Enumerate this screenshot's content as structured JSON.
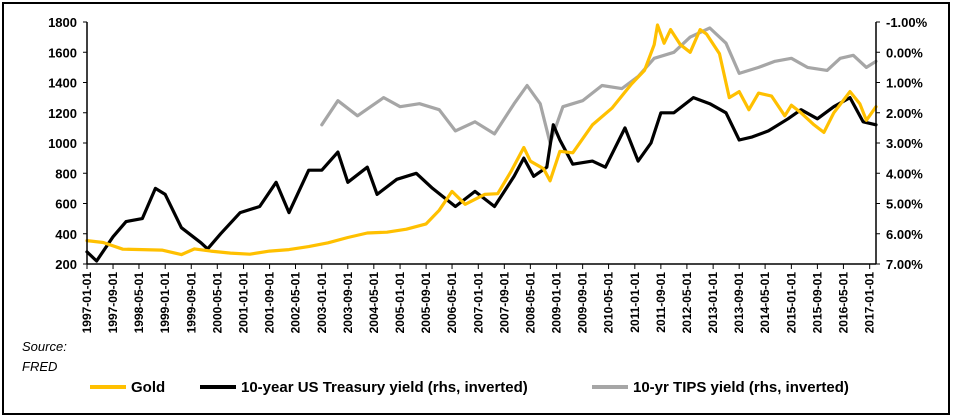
{
  "chart_data": {
    "type": "line",
    "title": "",
    "source_note": [
      "Source:",
      "FRED"
    ],
    "left_axis": {
      "ylim": [
        200,
        1800
      ],
      "ticks": [
        "1800",
        "1600",
        "1400",
        "1200",
        "1000",
        "800",
        "600",
        "400",
        "200"
      ]
    },
    "right_axis": {
      "ylim": [
        -1.0,
        7.0
      ],
      "inverted": true,
      "ticks": [
        "-1.00%",
        "0.00%",
        "1.00%",
        "2.00%",
        "3.00%",
        "4.00%",
        "5.00%",
        "6.00%",
        "7.00%"
      ]
    },
    "x_axis": {
      "range": [
        "1997-01-01",
        "2017-03-01"
      ],
      "ticks": [
        "1997-01-01",
        "1997-09-01",
        "1998-05-01",
        "1999-01-01",
        "1999-09-01",
        "2000-05-01",
        "2001-01-01",
        "2001-09-01",
        "2002-05-01",
        "2003-01-01",
        "2003-09-01",
        "2004-05-01",
        "2005-01-01",
        "2005-09-01",
        "2006-05-01",
        "2007-01-01",
        "2007-09-01",
        "2008-05-01",
        "2009-01-01",
        "2009-09-01",
        "2010-05-01",
        "2011-01-01",
        "2011-09-01",
        "2012-05-01",
        "2013-01-01",
        "2013-09-01",
        "2014-05-01",
        "2015-01-01",
        "2015-09-01",
        "2016-05-01",
        "2017-01-01"
      ]
    },
    "grid": false,
    "legend_position": "bottom",
    "series": [
      {
        "name": "Gold",
        "axis": "left",
        "color": "#FFC000",
        "points": [
          [
            "1997-01-01",
            355
          ],
          [
            "1997-06-01",
            342
          ],
          [
            "1997-12-01",
            298
          ],
          [
            "1998-06-01",
            295
          ],
          [
            "1998-12-01",
            292
          ],
          [
            "1999-06-01",
            262
          ],
          [
            "1999-10-01",
            300
          ],
          [
            "2000-03-01",
            285
          ],
          [
            "2000-09-01",
            272
          ],
          [
            "2001-03-01",
            265
          ],
          [
            "2001-09-01",
            285
          ],
          [
            "2002-03-01",
            295
          ],
          [
            "2002-09-01",
            315
          ],
          [
            "2003-03-01",
            340
          ],
          [
            "2003-09-01",
            375
          ],
          [
            "2004-03-01",
            405
          ],
          [
            "2004-09-01",
            410
          ],
          [
            "2005-03-01",
            430
          ],
          [
            "2005-09-01",
            465
          ],
          [
            "2006-01-01",
            555
          ],
          [
            "2006-05-01",
            680
          ],
          [
            "2006-09-01",
            595
          ],
          [
            "2007-03-01",
            660
          ],
          [
            "2007-07-01",
            665
          ],
          [
            "2007-11-01",
            810
          ],
          [
            "2008-03-01",
            970
          ],
          [
            "2008-05-01",
            880
          ],
          [
            "2008-09-01",
            830
          ],
          [
            "2008-11-01",
            750
          ],
          [
            "2009-02-01",
            945
          ],
          [
            "2009-06-01",
            935
          ],
          [
            "2009-12-01",
            1120
          ],
          [
            "2010-06-01",
            1230
          ],
          [
            "2010-12-01",
            1390
          ],
          [
            "2011-04-01",
            1480
          ],
          [
            "2011-07-01",
            1650
          ],
          [
            "2011-08-01",
            1780
          ],
          [
            "2011-10-01",
            1660
          ],
          [
            "2011-12-01",
            1750
          ],
          [
            "2012-03-01",
            1650
          ],
          [
            "2012-06-01",
            1600
          ],
          [
            "2012-09-01",
            1750
          ],
          [
            "2012-11-01",
            1720
          ],
          [
            "2013-03-01",
            1590
          ],
          [
            "2013-06-01",
            1300
          ],
          [
            "2013-09-01",
            1340
          ],
          [
            "2013-12-01",
            1220
          ],
          [
            "2014-03-01",
            1330
          ],
          [
            "2014-07-01",
            1310
          ],
          [
            "2014-11-01",
            1180
          ],
          [
            "2015-01-01",
            1250
          ],
          [
            "2015-04-01",
            1200
          ],
          [
            "2015-08-01",
            1120
          ],
          [
            "2015-11-01",
            1070
          ],
          [
            "2016-02-01",
            1200
          ],
          [
            "2016-07-01",
            1340
          ],
          [
            "2016-10-01",
            1260
          ],
          [
            "2016-12-01",
            1150
          ],
          [
            "2017-03-01",
            1240
          ]
        ]
      },
      {
        "name": "10-year US Treasury yield (rhs, inverted)",
        "axis": "right",
        "color": "#000000",
        "points": [
          [
            "1997-01-01",
            6.6
          ],
          [
            "1997-04-01",
            6.9
          ],
          [
            "1997-09-01",
            6.1
          ],
          [
            "1998-01-01",
            5.6
          ],
          [
            "1998-06-01",
            5.5
          ],
          [
            "1998-10-01",
            4.5
          ],
          [
            "1999-01-01",
            4.7
          ],
          [
            "1999-06-01",
            5.8
          ],
          [
            "1999-12-01",
            6.3
          ],
          [
            "2000-02-01",
            6.5
          ],
          [
            "2000-06-01",
            6.0
          ],
          [
            "2000-12-01",
            5.3
          ],
          [
            "2001-06-01",
            5.1
          ],
          [
            "2001-11-01",
            4.3
          ],
          [
            "2002-03-01",
            5.3
          ],
          [
            "2002-09-01",
            3.9
          ],
          [
            "2003-01-01",
            3.9
          ],
          [
            "2003-06-01",
            3.3
          ],
          [
            "2003-09-01",
            4.3
          ],
          [
            "2004-03-01",
            3.8
          ],
          [
            "2004-06-01",
            4.7
          ],
          [
            "2004-12-01",
            4.2
          ],
          [
            "2005-06-01",
            4.0
          ],
          [
            "2005-11-01",
            4.5
          ],
          [
            "2006-06-01",
            5.1
          ],
          [
            "2006-12-01",
            4.6
          ],
          [
            "2007-06-01",
            5.1
          ],
          [
            "2007-12-01",
            4.1
          ],
          [
            "2008-03-01",
            3.5
          ],
          [
            "2008-06-01",
            4.1
          ],
          [
            "2008-10-01",
            3.8
          ],
          [
            "2008-12-01",
            2.4
          ],
          [
            "2009-02-01",
            2.9
          ],
          [
            "2009-06-01",
            3.7
          ],
          [
            "2009-12-01",
            3.6
          ],
          [
            "2010-04-01",
            3.8
          ],
          [
            "2010-10-01",
            2.5
          ],
          [
            "2011-02-01",
            3.6
          ],
          [
            "2011-06-01",
            3.0
          ],
          [
            "2011-09-01",
            2.0
          ],
          [
            "2012-01-01",
            2.0
          ],
          [
            "2012-07-01",
            1.5
          ],
          [
            "2012-12-01",
            1.7
          ],
          [
            "2013-05-01",
            2.0
          ],
          [
            "2013-09-01",
            2.9
          ],
          [
            "2014-01-01",
            2.8
          ],
          [
            "2014-06-01",
            2.6
          ],
          [
            "2014-12-01",
            2.2
          ],
          [
            "2015-04-01",
            1.9
          ],
          [
            "2015-09-01",
            2.2
          ],
          [
            "2016-02-01",
            1.8
          ],
          [
            "2016-07-01",
            1.5
          ],
          [
            "2016-11-01",
            2.3
          ],
          [
            "2017-03-01",
            2.4
          ]
        ]
      },
      {
        "name": "10-yr TIPS yield (rhs, inverted)",
        "axis": "right",
        "color": "#A6A6A6",
        "points": [
          [
            "2003-01-01",
            2.4
          ],
          [
            "2003-06-01",
            1.6
          ],
          [
            "2003-12-01",
            2.1
          ],
          [
            "2004-04-01",
            1.8
          ],
          [
            "2004-08-01",
            1.5
          ],
          [
            "2005-01-01",
            1.8
          ],
          [
            "2005-07-01",
            1.7
          ],
          [
            "2006-01-01",
            1.9
          ],
          [
            "2006-06-01",
            2.6
          ],
          [
            "2006-12-01",
            2.3
          ],
          [
            "2007-06-01",
            2.7
          ],
          [
            "2007-12-01",
            1.7
          ],
          [
            "2008-04-01",
            1.1
          ],
          [
            "2008-08-01",
            1.7
          ],
          [
            "2008-11-01",
            3.0
          ],
          [
            "2009-03-01",
            1.8
          ],
          [
            "2009-09-01",
            1.6
          ],
          [
            "2010-03-01",
            1.1
          ],
          [
            "2010-09-01",
            1.2
          ],
          [
            "2011-02-01",
            0.8
          ],
          [
            "2011-07-01",
            0.2
          ],
          [
            "2012-01-01",
            0.0
          ],
          [
            "2012-06-01",
            -0.5
          ],
          [
            "2012-12-01",
            -0.8
          ],
          [
            "2013-05-01",
            -0.3
          ],
          [
            "2013-09-01",
            0.7
          ],
          [
            "2014-03-01",
            0.5
          ],
          [
            "2014-08-01",
            0.3
          ],
          [
            "2015-01-01",
            0.2
          ],
          [
            "2015-06-01",
            0.5
          ],
          [
            "2015-12-01",
            0.6
          ],
          [
            "2016-04-01",
            0.2
          ],
          [
            "2016-08-01",
            0.1
          ],
          [
            "2016-12-01",
            0.5
          ],
          [
            "2017-03-01",
            0.3
          ]
        ]
      }
    ]
  }
}
